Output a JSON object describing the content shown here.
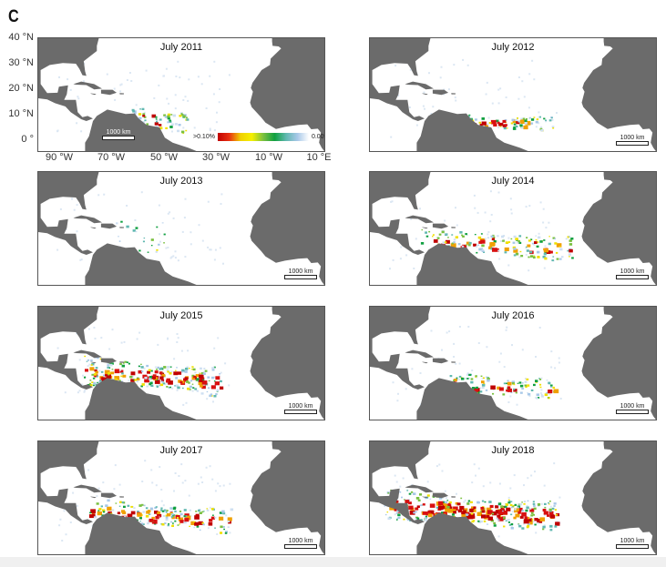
{
  "figure_label": "C",
  "panels": [
    {
      "title": "July 2011"
    },
    {
      "title": "July 2012"
    },
    {
      "title": "July 2013"
    },
    {
      "title": "July 2014"
    },
    {
      "title": "July 2015"
    },
    {
      "title": "July 2016"
    },
    {
      "title": "July 2017"
    },
    {
      "title": "July 2018"
    }
  ],
  "scale_bar_label": "1000 km",
  "y_axis_labels": [
    "40 °N",
    "30 °N",
    "20 °N",
    "10 °N",
    "0 °"
  ],
  "x_axis_labels": [
    "90 °W",
    "70 °W",
    "50 °W",
    "30 °W",
    "10 °W",
    "10 °E"
  ],
  "legend": {
    "max_label": ">0.10%",
    "min_label": "0.00%"
  },
  "colors": {
    "land": "#6b6b6b",
    "ocean": "#ffffff",
    "high": "#c00000",
    "mid": "#f0d000",
    "low": "#10a040",
    "trace": "#a8c8e8"
  }
}
